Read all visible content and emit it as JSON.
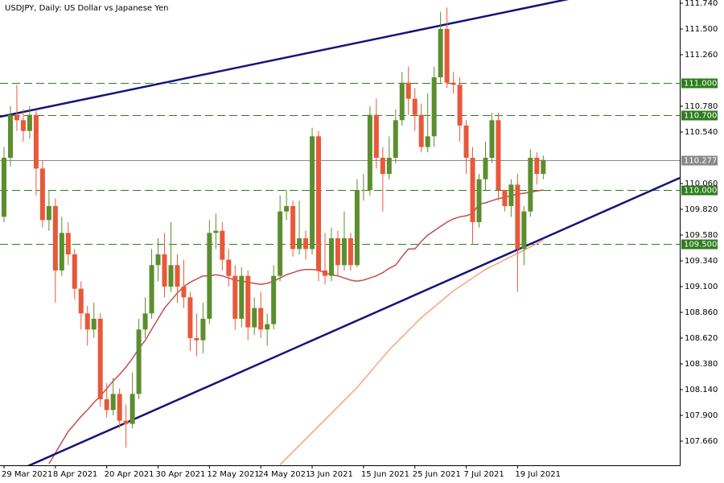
{
  "chart_data": {
    "type": "candlestick",
    "title": "USDJPY, Daily:  US Dollar vs Japanese Yen",
    "categories": [
      "29 Mar 2021",
      null,
      null,
      null,
      null,
      null,
      null,
      null,
      "8 Apr 2021",
      null,
      null,
      null,
      null,
      null,
      null,
      null,
      "20 Apr 2021",
      null,
      null,
      null,
      null,
      null,
      null,
      null,
      "30 Apr 2021",
      null,
      null,
      null,
      null,
      null,
      null,
      null,
      "12 May 2021",
      null,
      null,
      null,
      null,
      null,
      null,
      null,
      "24 May 2021",
      null,
      null,
      null,
      null,
      null,
      null,
      null,
      "3 Jun 2021",
      null,
      null,
      null,
      null,
      null,
      null,
      null,
      "15 Jun 2021",
      null,
      null,
      null,
      null,
      null,
      null,
      null,
      "25 Jun 2021",
      null,
      null,
      null,
      null,
      null,
      null,
      null,
      "7 Jul 2021",
      null,
      null,
      null,
      null,
      null,
      null,
      null,
      "19 Jul 2021",
      null,
      null,
      null,
      null
    ],
    "open": [
      109.75,
      110.3,
      110.7,
      110.65,
      110.55,
      110.7,
      110.2,
      109.72,
      109.85,
      109.25,
      109.6,
      109.4,
      109.08,
      108.85,
      108.7,
      108.8,
      108.05,
      107.95,
      108.1,
      107.85,
      107.82,
      108.1,
      108.7,
      108.85,
      109.3,
      109.4,
      109.1,
      109.3,
      109.1,
      109.0,
      108.62,
      108.6,
      108.8,
      109.6,
      109.62,
      109.35,
      109.2,
      108.8,
      109.2,
      108.72,
      108.9,
      108.7,
      108.75,
      109.2,
      109.8,
      109.85,
      109.45,
      109.55,
      109.45,
      110.5,
      109.25,
      109.2,
      109.55,
      109.3,
      109.55,
      109.3,
      110.0,
      110.0,
      110.7,
      110.3,
      110.15,
      110.3,
      110.65,
      111.0,
      110.85,
      110.7,
      110.4,
      110.5,
      111.05,
      111.5,
      111.0,
      110.98,
      110.6,
      110.3,
      109.7,
      110.1,
      110.3,
      110.65,
      110.0,
      109.85,
      110.05,
      109.45,
      109.8,
      110.3,
      110.15
    ],
    "high": [
      110.4,
      110.78,
      110.98,
      110.75,
      110.78,
      110.75,
      110.28,
      110.0,
      109.92,
      109.75,
      109.7,
      109.45,
      109.15,
      108.92,
      108.95,
      108.85,
      108.2,
      108.25,
      108.15,
      108.0,
      108.3,
      108.8,
      109.0,
      109.45,
      109.55,
      109.6,
      109.7,
      109.4,
      109.35,
      109.05,
      108.85,
      108.95,
      109.72,
      109.78,
      109.7,
      109.45,
      109.3,
      109.28,
      109.25,
      109.0,
      109.05,
      108.85,
      109.3,
      109.95,
      110.0,
      109.9,
      109.9,
      109.62,
      110.58,
      110.55,
      109.6,
      109.65,
      109.62,
      109.8,
      109.6,
      110.1,
      110.15,
      110.78,
      110.85,
      110.4,
      110.5,
      110.75,
      111.1,
      111.15,
      110.95,
      110.8,
      110.9,
      111.15,
      111.66,
      111.7,
      111.1,
      111.05,
      110.65,
      110.4,
      110.15,
      110.45,
      110.72,
      110.72,
      110.0,
      110.1,
      110.15,
      109.85,
      110.38,
      110.35,
      110.32
    ],
    "low": [
      109.7,
      110.22,
      110.55,
      110.45,
      110.48,
      109.95,
      109.65,
      109.62,
      108.95,
      109.2,
      109.3,
      108.98,
      108.7,
      108.55,
      108.62,
      107.98,
      107.88,
      107.9,
      107.78,
      107.6,
      107.78,
      108.05,
      108.62,
      108.8,
      109.15,
      109.0,
      109.05,
      108.95,
      108.9,
      108.5,
      108.45,
      108.48,
      108.75,
      109.45,
      109.25,
      109.1,
      108.7,
      108.72,
      108.6,
      108.65,
      108.62,
      108.55,
      108.7,
      109.15,
      109.72,
      109.38,
      109.4,
      109.35,
      109.4,
      109.15,
      109.12,
      109.15,
      109.2,
      109.25,
      109.25,
      109.28,
      109.9,
      109.95,
      110.2,
      109.8,
      110.1,
      110.25,
      110.6,
      110.7,
      110.55,
      110.35,
      110.35,
      110.4,
      111.0,
      110.95,
      110.9,
      110.45,
      110.15,
      109.5,
      109.65,
      110.0,
      110.25,
      109.9,
      109.8,
      109.75,
      109.05,
      109.3,
      109.75,
      110.05,
      110.1
    ],
    "close": [
      110.3,
      110.7,
      110.65,
      110.55,
      110.7,
      110.2,
      109.72,
      109.85,
      109.25,
      109.6,
      109.4,
      109.08,
      108.85,
      108.7,
      108.8,
      108.05,
      107.95,
      108.1,
      107.85,
      107.82,
      108.1,
      108.7,
      108.85,
      109.3,
      109.4,
      109.1,
      109.3,
      109.1,
      109.0,
      108.62,
      108.6,
      108.8,
      109.6,
      109.62,
      109.35,
      109.2,
      108.8,
      109.2,
      108.72,
      108.9,
      108.7,
      108.75,
      109.2,
      109.8,
      109.85,
      109.45,
      109.55,
      109.45,
      110.5,
      109.25,
      109.2,
      109.55,
      109.3,
      109.55,
      109.3,
      110.0,
      110.0,
      110.7,
      110.3,
      110.15,
      110.3,
      110.65,
      111.0,
      110.85,
      110.7,
      110.4,
      110.5,
      111.05,
      111.5,
      111.0,
      110.98,
      110.6,
      110.3,
      109.7,
      110.1,
      110.3,
      110.65,
      110.0,
      109.85,
      110.05,
      109.45,
      109.8,
      110.3,
      110.15,
      110.28
    ],
    "up_color": "#5b8e2e",
    "down_color": "#e8583a",
    "moving_averages": [
      {
        "color": "#c0504d",
        "values": [
          null,
          null,
          null,
          null,
          null,
          null,
          null,
          107.45,
          107.55,
          107.65,
          107.75,
          107.82,
          107.89,
          107.95,
          108.02,
          108.08,
          108.15,
          108.22,
          108.28,
          108.35,
          108.43,
          108.52,
          108.6,
          108.7,
          108.8,
          108.9,
          108.97,
          109.04,
          109.1,
          109.14,
          109.17,
          109.2,
          109.2,
          109.21,
          109.2,
          109.18,
          109.16,
          109.15,
          109.14,
          109.13,
          109.12,
          109.13,
          109.15,
          109.18,
          109.21,
          109.23,
          109.25,
          109.26,
          109.26,
          109.25,
          109.23,
          109.21,
          109.2,
          109.18,
          109.16,
          109.15,
          109.16,
          109.18,
          109.2,
          109.23,
          109.27,
          109.3,
          109.38,
          109.45,
          109.45,
          109.52,
          109.58,
          109.62,
          109.66,
          109.7,
          109.73,
          109.75,
          109.76,
          109.78,
          109.87,
          109.88,
          109.9,
          109.92,
          109.93,
          109.95,
          109.96,
          109.97,
          109.98,
          109.99,
          110.0
        ]
      },
      {
        "color": "#f4a582",
        "values": [
          null,
          null,
          null,
          null,
          null,
          null,
          null,
          null,
          null,
          null,
          null,
          null,
          null,
          null,
          null,
          null,
          null,
          null,
          null,
          null,
          null,
          null,
          null,
          null,
          null,
          null,
          null,
          null,
          null,
          null,
          null,
          null,
          null,
          null,
          null,
          null,
          null,
          null,
          null,
          null,
          null,
          null,
          null,
          107.44,
          107.5,
          107.56,
          107.62,
          107.68,
          107.74,
          107.8,
          107.86,
          107.92,
          107.98,
          108.04,
          108.1,
          108.16,
          108.23,
          108.3,
          108.37,
          108.44,
          108.51,
          108.57,
          108.63,
          108.69,
          108.75,
          108.81,
          108.86,
          108.91,
          108.96,
          109.01,
          109.06,
          109.1,
          109.14,
          109.18,
          109.22,
          109.26,
          109.29,
          109.32,
          109.35,
          109.38,
          109.41,
          109.44,
          109.47,
          109.5,
          109.53
        ]
      }
    ],
    "trendlines": [
      {
        "color": "#141478",
        "points": [
          [
            0,
            110.69
          ],
          [
            84,
            111.73
          ]
        ]
      },
      {
        "color": "#141478",
        "points": [
          [
            4,
            107.435
          ],
          [
            84,
            109.55
          ]
        ]
      }
    ],
    "levels": [
      {
        "value": 111.0,
        "label": "111.000",
        "color": "#2e7d1e"
      },
      {
        "value": 110.7,
        "label": "110.700",
        "color": "#2e7d1e"
      },
      {
        "value": 110.0,
        "label": "110.000",
        "color": "#2e7d1e"
      },
      {
        "value": 109.5,
        "label": "109.500",
        "color": "#2e7d1e"
      }
    ],
    "last_price": {
      "value": 110.277,
      "color": "#8a8a8a"
    },
    "ylim": [
      107.435,
      111.77
    ],
    "yticks": [
      {
        "value": 111.74,
        "label": "111.740"
      },
      {
        "value": 111.5,
        "label": "111.500"
      },
      {
        "value": 111.26,
        "label": "111.260"
      },
      {
        "value": 110.78,
        "label": "110.780"
      },
      {
        "value": 110.54,
        "label": "110.540"
      },
      {
        "value": 110.06,
        "label": "110.060"
      },
      {
        "value": 109.82,
        "label": "109.820"
      },
      {
        "value": 109.58,
        "label": "109.580"
      },
      {
        "value": 109.34,
        "label": "109.340"
      },
      {
        "value": 109.1,
        "label": "109.100"
      },
      {
        "value": 108.86,
        "label": "108.860"
      },
      {
        "value": 108.62,
        "label": "108.620"
      },
      {
        "value": 108.38,
        "label": "108.380"
      },
      {
        "value": 108.14,
        "label": "108.140"
      },
      {
        "value": 107.9,
        "label": "107.900"
      },
      {
        "value": 107.66,
        "label": "107.660"
      }
    ]
  }
}
